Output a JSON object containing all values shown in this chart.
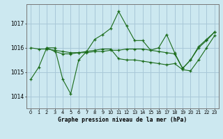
{
  "title": "Graphe pression niveau de la mer (hPa)",
  "yticks": [
    1014,
    1015,
    1016,
    1017
  ],
  "ylim": [
    1013.5,
    1017.8
  ],
  "xlim": [
    -0.5,
    23.5
  ],
  "background_color": "#cce8f0",
  "grid_color": "#a8c8d8",
  "line_color": "#1a6b1a",
  "series": [
    {
      "x": [
        0,
        1,
        2,
        3,
        4,
        5,
        6,
        7,
        8,
        9,
        10,
        11,
        12,
        13,
        14,
        15,
        16,
        17,
        18,
        19,
        20,
        21,
        22,
        23
      ],
      "y": [
        1014.7,
        1015.2,
        1016.0,
        1016.0,
        1014.7,
        1014.1,
        1015.5,
        1015.85,
        1016.35,
        1016.55,
        1016.8,
        1017.5,
        1016.9,
        1016.3,
        1016.3,
        1015.9,
        1016.0,
        1016.55,
        1015.8,
        1015.15,
        1015.5,
        1016.0,
        1016.3,
        1016.65
      ]
    },
    {
      "x": [
        2,
        3,
        4,
        5,
        6,
        7,
        8,
        9,
        10,
        11,
        12,
        13,
        14,
        15,
        16,
        17,
        18,
        19,
        20,
        21,
        22,
        23
      ],
      "y": [
        1016.0,
        1015.85,
        1015.75,
        1015.75,
        1015.8,
        1015.85,
        1015.9,
        1015.95,
        1015.95,
        1015.55,
        1015.5,
        1015.5,
        1015.45,
        1015.4,
        1015.35,
        1015.3,
        1015.35,
        1015.1,
        1015.05,
        1015.5,
        1016.0,
        1016.5
      ]
    },
    {
      "x": [
        0,
        1,
        2,
        3,
        4,
        5,
        6,
        7,
        8,
        9,
        10,
        11,
        12,
        13,
        14,
        15,
        16,
        17,
        18,
        19,
        20,
        21,
        22,
        23
      ],
      "y": [
        1016.0,
        1015.95,
        1015.95,
        1015.9,
        1015.85,
        1015.8,
        1015.8,
        1015.8,
        1015.85,
        1015.85,
        1015.9,
        1015.9,
        1015.95,
        1015.95,
        1015.95,
        1015.9,
        1015.85,
        1015.8,
        1015.75,
        1015.15,
        1015.5,
        1016.05,
        1016.35,
        1016.65
      ]
    }
  ]
}
